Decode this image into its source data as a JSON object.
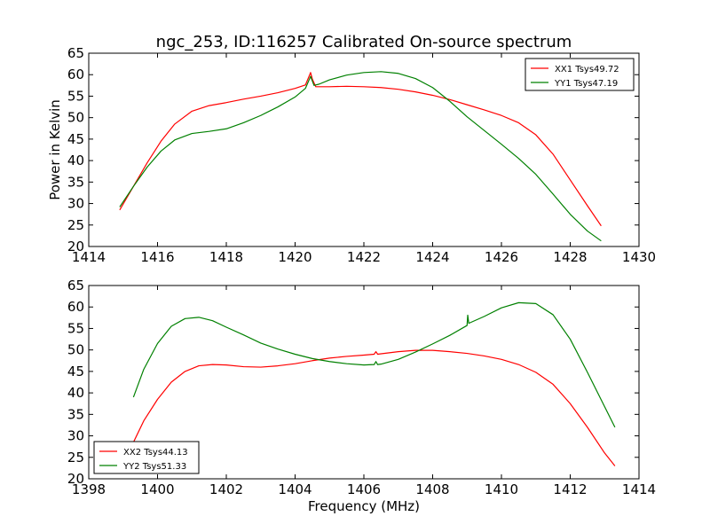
{
  "figure": {
    "title": "ngc_253, ID:116257 Calibrated On-source spectrum",
    "xlabel": "Frequency (MHz)",
    "ylabel": "Power in Kelvin"
  },
  "chart_data": [
    {
      "type": "line",
      "title": "ngc_253, ID:116257 Calibrated On-source spectrum",
      "xlabel": "",
      "ylabel": "Power in Kelvin",
      "xlim": [
        1414,
        1430
      ],
      "ylim": [
        20,
        65
      ],
      "xticks": [
        1414,
        1416,
        1418,
        1420,
        1422,
        1424,
        1426,
        1428,
        1430
      ],
      "yticks": [
        20,
        25,
        30,
        35,
        40,
        45,
        50,
        55,
        60,
        65
      ],
      "grid": false,
      "legend": "top-right",
      "series": [
        {
          "name": "XX1 Tsys49.72",
          "color": "#ff0000",
          "x": [
            1414.9,
            1415.3,
            1415.7,
            1416.1,
            1416.5,
            1417.0,
            1417.5,
            1418.0,
            1418.5,
            1419.0,
            1419.5,
            1420.0,
            1420.3,
            1420.4,
            1420.45,
            1420.5,
            1420.6,
            1421.0,
            1421.5,
            1422.0,
            1422.5,
            1423.0,
            1423.5,
            1424.0,
            1424.5,
            1425.0,
            1425.5,
            1426.0,
            1426.5,
            1427.0,
            1427.5,
            1428.0,
            1428.5,
            1428.9
          ],
          "y": [
            28.5,
            34.0,
            39.5,
            44.5,
            48.5,
            51.5,
            52.8,
            53.5,
            54.3,
            55.0,
            55.8,
            56.8,
            57.6,
            59.5,
            60.5,
            59.0,
            57.2,
            57.2,
            57.3,
            57.2,
            57.0,
            56.6,
            56.0,
            55.2,
            54.2,
            53.0,
            51.8,
            50.5,
            48.8,
            46.0,
            41.5,
            35.5,
            29.5,
            24.8
          ]
        },
        {
          "name": "YY1 Tsys47.19",
          "color": "#008000",
          "x": [
            1414.9,
            1415.3,
            1415.7,
            1416.1,
            1416.5,
            1417.0,
            1417.5,
            1418.0,
            1418.5,
            1419.0,
            1419.5,
            1420.0,
            1420.3,
            1420.45,
            1420.55,
            1420.7,
            1421.0,
            1421.5,
            1422.0,
            1422.5,
            1423.0,
            1423.5,
            1424.0,
            1424.5,
            1425.0,
            1425.5,
            1426.0,
            1426.5,
            1427.0,
            1427.5,
            1428.0,
            1428.5,
            1428.9
          ],
          "y": [
            29.2,
            34.0,
            38.5,
            42.2,
            44.8,
            46.3,
            46.8,
            47.4,
            48.8,
            50.5,
            52.5,
            54.8,
            56.8,
            59.6,
            57.5,
            57.8,
            58.8,
            59.9,
            60.5,
            60.7,
            60.3,
            59.1,
            57.0,
            53.8,
            50.2,
            47.0,
            43.8,
            40.5,
            36.8,
            32.2,
            27.5,
            23.6,
            21.3
          ]
        }
      ]
    },
    {
      "type": "line",
      "title": "",
      "xlabel": "Frequency (MHz)",
      "ylabel": "",
      "xlim": [
        1398,
        1414
      ],
      "ylim": [
        20,
        65
      ],
      "xticks": [
        1398,
        1400,
        1402,
        1404,
        1406,
        1408,
        1410,
        1412,
        1414
      ],
      "yticks": [
        20,
        25,
        30,
        35,
        40,
        45,
        50,
        55,
        60,
        65
      ],
      "grid": false,
      "legend": "bottom-left",
      "series": [
        {
          "name": "XX2 Tsys44.13",
          "color": "#ff0000",
          "x": [
            1399.3,
            1399.6,
            1400.0,
            1400.4,
            1400.8,
            1401.2,
            1401.6,
            1402.0,
            1402.5,
            1403.0,
            1403.5,
            1404.0,
            1404.5,
            1405.0,
            1405.5,
            1406.0,
            1406.3,
            1406.35,
            1406.4,
            1406.5,
            1407.0,
            1407.5,
            1408.0,
            1408.5,
            1409.0,
            1409.5,
            1410.0,
            1410.5,
            1411.0,
            1411.5,
            1412.0,
            1412.5,
            1413.0,
            1413.3
          ],
          "y": [
            28.5,
            33.5,
            38.5,
            42.5,
            45.0,
            46.3,
            46.6,
            46.5,
            46.1,
            46.0,
            46.3,
            46.8,
            47.5,
            48.1,
            48.5,
            48.8,
            49.0,
            49.6,
            49.0,
            49.1,
            49.6,
            49.9,
            49.9,
            49.6,
            49.2,
            48.6,
            47.8,
            46.6,
            44.8,
            42.0,
            37.5,
            32.0,
            26.0,
            23.0
          ]
        },
        {
          "name": "YY2 Tsys51.33",
          "color": "#008000",
          "x": [
            1399.3,
            1399.6,
            1400.0,
            1400.4,
            1400.8,
            1401.2,
            1401.6,
            1402.0,
            1402.5,
            1403.0,
            1403.5,
            1404.0,
            1404.5,
            1405.0,
            1405.5,
            1406.0,
            1406.3,
            1406.35,
            1406.4,
            1406.5,
            1407.0,
            1407.5,
            1408.0,
            1408.5,
            1409.0,
            1409.02,
            1409.05,
            1409.5,
            1410.0,
            1410.5,
            1411.0,
            1411.5,
            1412.0,
            1412.5,
            1413.0,
            1413.3
          ],
          "y": [
            39.0,
            45.5,
            51.5,
            55.5,
            57.3,
            57.6,
            56.8,
            55.3,
            53.5,
            51.6,
            50.2,
            49.0,
            48.0,
            47.3,
            46.8,
            46.5,
            46.6,
            47.3,
            46.6,
            46.7,
            47.8,
            49.5,
            51.4,
            53.4,
            55.7,
            58.1,
            56.2,
            57.8,
            59.8,
            61.0,
            60.8,
            58.2,
            52.5,
            44.8,
            36.8,
            32.0
          ]
        }
      ]
    }
  ]
}
